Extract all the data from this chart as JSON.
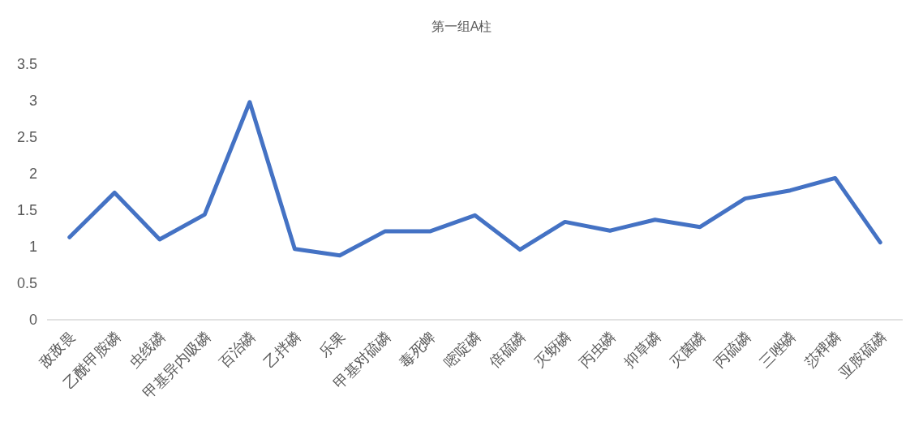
{
  "chart_data": {
    "type": "line",
    "title": "第一组A柱",
    "categories": [
      "敌敌畏",
      "乙酰甲胺磷",
      "虫线磷",
      "甲基异内吸磷",
      "百治磷",
      "乙拌磷",
      "乐果",
      "甲基对硫磷",
      "毒死蜱",
      "嘧啶磷",
      "倍硫磷",
      "灭蚜磷",
      "丙虫磷",
      "抑草磷",
      "灭菌磷",
      "丙硫磷",
      "三唑磷",
      "莎稗磷",
      "亚胺硫磷"
    ],
    "series": [
      {
        "color": "#4472c4",
        "values": [
          1.13,
          1.74,
          1.1,
          1.44,
          2.98,
          0.97,
          0.88,
          1.21,
          1.21,
          1.43,
          0.96,
          1.34,
          1.22,
          1.37,
          1.27,
          1.66,
          1.77,
          1.94,
          1.06
        ]
      }
    ],
    "ylim": [
      0,
      3.5
    ],
    "yticks": [
      0,
      0.5,
      1,
      1.5,
      2,
      2.5,
      3,
      3.5
    ],
    "line_style": "solid"
  }
}
